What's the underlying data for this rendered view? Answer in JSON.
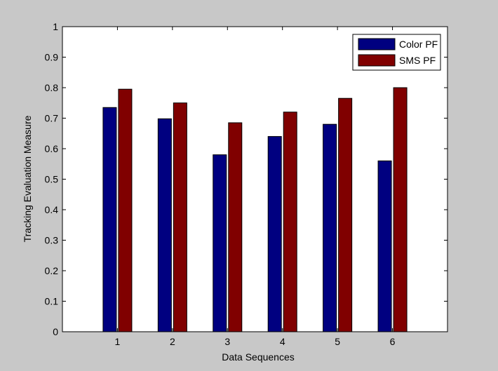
{
  "chart_data": {
    "type": "bar",
    "categories": [
      "1",
      "2",
      "3",
      "4",
      "5",
      "6"
    ],
    "series": [
      {
        "name": "Color PF",
        "values": [
          0.735,
          0.698,
          0.58,
          0.64,
          0.68,
          0.56
        ],
        "color": "#000080"
      },
      {
        "name": "SMS PF",
        "values": [
          0.795,
          0.75,
          0.685,
          0.72,
          0.765,
          0.8
        ],
        "color": "#800000"
      }
    ],
    "title": "",
    "xlabel": "Data Sequences",
    "ylabel": "Tracking Evaluation Measure",
    "ylim": [
      0,
      1
    ],
    "yticks": [
      "0",
      "0.1",
      "0.2",
      "0.3",
      "0.4",
      "0.5",
      "0.6",
      "0.7",
      "0.8",
      "0.9",
      "1"
    ],
    "grid": false,
    "legend_position": "top-right",
    "background_color": "#c8c8c8",
    "plot_background_color": "#ffffff"
  }
}
